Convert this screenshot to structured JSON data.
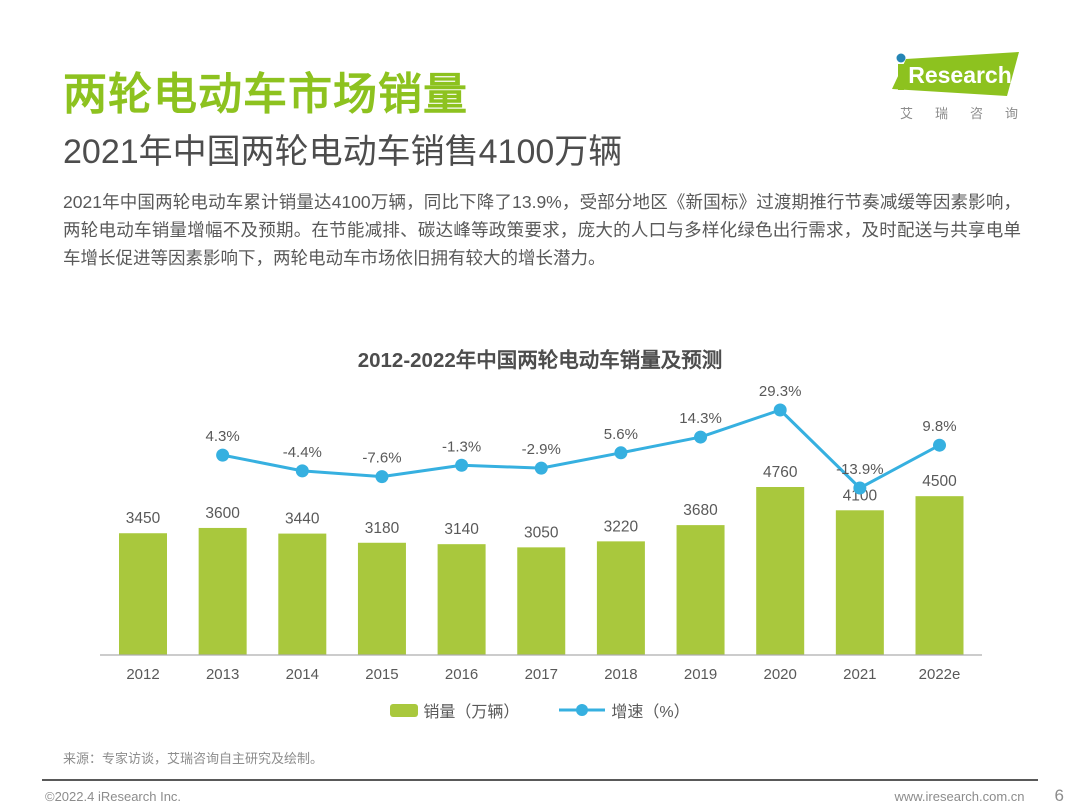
{
  "header": {
    "title": "两轮电动车市场销量",
    "subtitle": "2021年中国两轮电动车销售4100万辆"
  },
  "logo": {
    "brand_i": "i",
    "brand_name": "Research",
    "brand_cn_chars": [
      "艾",
      "瑞",
      "咨",
      "询"
    ]
  },
  "body_text": {
    "paragraph": "2021年中国两轮电动车累计销量达4100万辆，同比下降了13.9%，受部分地区《新国标》过渡期推行节奏减缓等因素影响，两轮电动车销量增幅不及预期。在节能减排、碳达峰等政策要求，庞大的人口与多样化绿色出行需求，及时配送与共享电单车增长促进等因素影响下，两轮电动车市场依旧拥有较大的增长潜力。"
  },
  "chart_data": {
    "type": "bar",
    "title": "2012-2022年中国两轮电动车销量及预测",
    "categories": [
      "2012",
      "2013",
      "2014",
      "2015",
      "2016",
      "2017",
      "2018",
      "2019",
      "2020",
      "2021",
      "2022e"
    ],
    "series": [
      {
        "name": "销量（万辆）",
        "type": "bar",
        "values": [
          3450,
          3600,
          3440,
          3180,
          3140,
          3050,
          3220,
          3680,
          4760,
          4100,
          4500
        ],
        "color": "#a9c83d"
      },
      {
        "name": "增速（%）",
        "type": "line",
        "values": [
          null,
          4.3,
          -4.4,
          -7.6,
          -1.3,
          -2.9,
          5.6,
          14.3,
          29.3,
          -13.9,
          9.8
        ],
        "unit": "%",
        "color": "#36b0e0"
      }
    ],
    "legend_position": "bottom",
    "grid": false,
    "y_axis_visible": false,
    "label_color": "#595959",
    "axis_color": "#adadad"
  },
  "footer": {
    "source": "来源：专家访谈，艾瑞咨询自主研究及绘制。",
    "copyright": "©2022.4 iResearch Inc.",
    "website": "www.iresearch.com.cn",
    "page_number": "6"
  },
  "colors": {
    "title_green": "#8dc21f",
    "bar_green": "#a9c83d",
    "line_blue": "#36b0e0",
    "logo_dot_blue": "#2585b5"
  }
}
